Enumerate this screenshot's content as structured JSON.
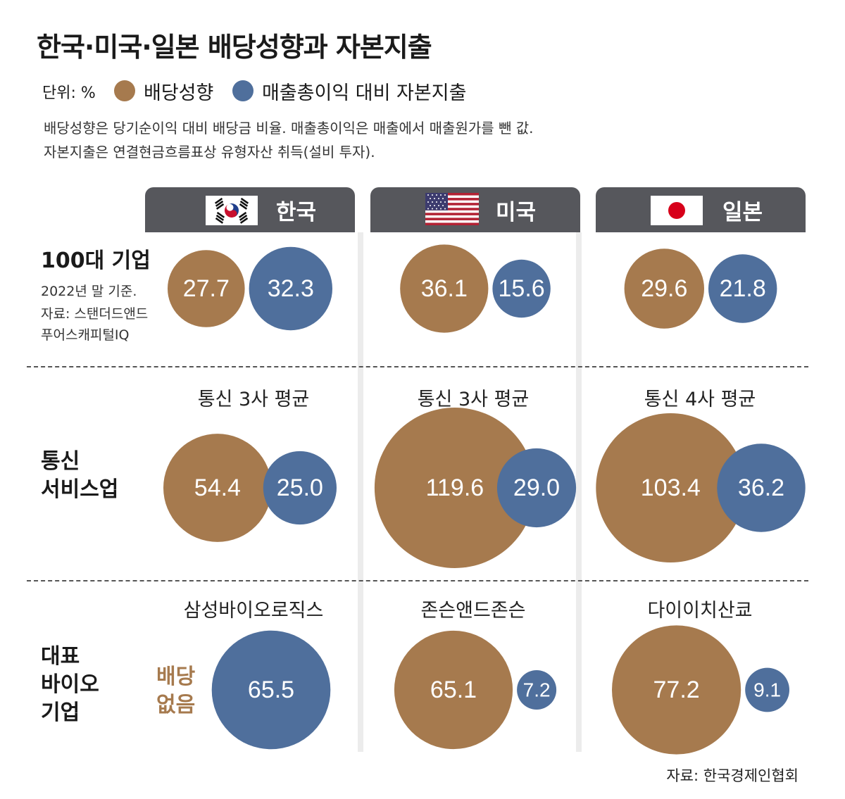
{
  "title": "한국·미국·일본 배당성향과 자본지출",
  "legend": {
    "unit": "단위: %",
    "payout_label": "배당성향",
    "capex_label": "매출총이익 대비 자본지출"
  },
  "notes": [
    "배당성향은 당기순이익 대비 배당금 비율. 매출총이익은 매출에서 매출원가를 뺀 값.",
    "자본지출은 연결현금흐름표상 유형자산 취득(설비 투자)."
  ],
  "countries": [
    "한국",
    "미국",
    "일본"
  ],
  "rows": {
    "top100": {
      "label": "100대 기업",
      "sub1": "2022년 말 기준.",
      "sub2": "자료: 스탠더드앤드",
      "sub3": "푸어스캐피털IQ"
    },
    "telecom": {
      "label1": "통신",
      "label2": "서비스업",
      "subtitles": [
        "통신 3사 평균",
        "통신 3사 평균",
        "통신 4사 평균"
      ]
    },
    "bio": {
      "label1": "대표",
      "label2": "바이오",
      "label3": "기업",
      "subtitles": [
        "삼성바이오로직스",
        "존슨앤드존슨",
        "다이이치산쿄"
      ],
      "no_dividend_1": "배당",
      "no_dividend_2": "없음"
    }
  },
  "source": "자료: 한국경제인협회",
  "colors": {
    "payout": "#a67a4e",
    "capex": "#4f6f9c",
    "header": "#56575c"
  },
  "chart_data": {
    "type": "bubble",
    "series": [
      {
        "name": "배당성향",
        "values": [
          [
            27.7,
            36.1,
            29.6
          ],
          [
            54.4,
            119.6,
            103.4
          ],
          [
            null,
            65.1,
            77.2
          ]
        ]
      },
      {
        "name": "매출총이익 대비 자본지출",
        "values": [
          [
            32.3,
            15.6,
            21.8
          ],
          [
            25.0,
            29.0,
            36.2
          ],
          [
            65.5,
            7.2,
            9.1
          ]
        ]
      }
    ],
    "rows": [
      "100대 기업",
      "통신 서비스업",
      "대표 바이오 기업"
    ],
    "columns": [
      "한국",
      "미국",
      "일본"
    ],
    "labels": {
      "payout": [
        [
          "27.7",
          "36.1",
          "29.6"
        ],
        [
          "54.4",
          "119.6",
          "103.4"
        ],
        [
          "",
          "65.1",
          "77.2"
        ]
      ],
      "capex": [
        [
          "32.3",
          "15.6",
          "21.8"
        ],
        [
          "25.0",
          "29.0",
          "36.2"
        ],
        [
          "65.5",
          "7.2",
          "9.1"
        ]
      ]
    },
    "size_encoding": "area"
  }
}
